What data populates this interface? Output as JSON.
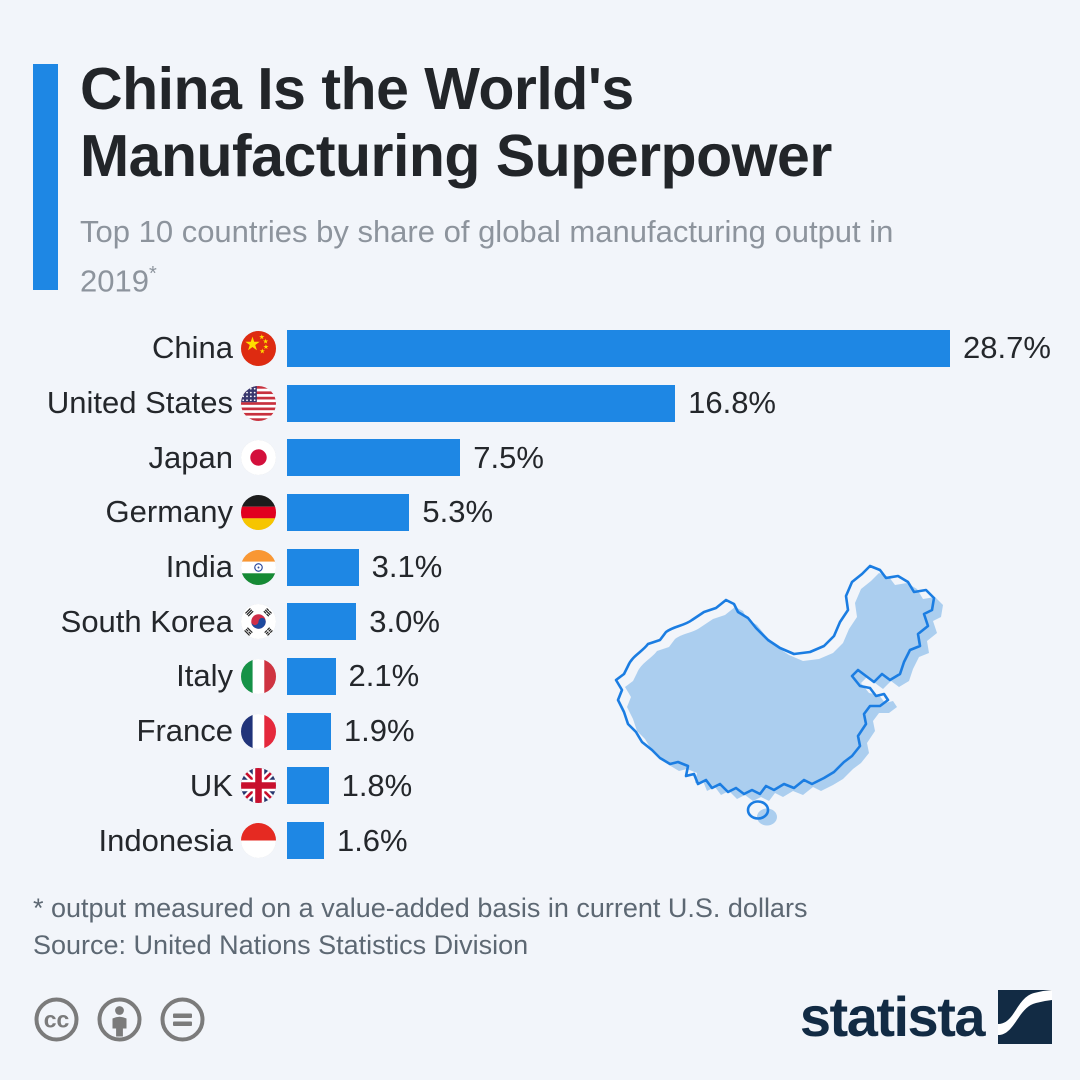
{
  "header": {
    "title_line1": "China Is the World's",
    "title_line2": "Manufacturing Superpower",
    "subtitle": "Top 10 countries by share of global manufacturing output in 2019",
    "subtitle_note_marker": "*"
  },
  "chart_data": {
    "type": "bar",
    "orientation": "horizontal",
    "title": "Top 10 countries by share of global manufacturing output in 2019",
    "unit": "%",
    "xlim": [
      0,
      28.7
    ],
    "grid": false,
    "bar_color": "#1e87e4",
    "categories": [
      "China",
      "United States",
      "Japan",
      "Germany",
      "India",
      "South Korea",
      "Italy",
      "France",
      "UK",
      "Indonesia"
    ],
    "values": [
      28.7,
      16.8,
      7.5,
      5.3,
      3.1,
      3.0,
      2.1,
      1.9,
      1.8,
      1.6
    ],
    "value_labels": [
      "28.7%",
      "16.8%",
      "7.5%",
      "5.3%",
      "3.1%",
      "3.0%",
      "2.1%",
      "1.9%",
      "1.8%",
      "1.6%"
    ],
    "flag_icons": [
      "china-flag-icon",
      "united-states-flag-icon",
      "japan-flag-icon",
      "germany-flag-icon",
      "india-flag-icon",
      "south-korea-flag-icon",
      "italy-flag-icon",
      "france-flag-icon",
      "uk-flag-icon",
      "indonesia-flag-icon"
    ]
  },
  "map": {
    "icon": "china-map-silhouette",
    "fill": "#abceef",
    "stroke": "#1b7de2"
  },
  "footer": {
    "footnote": "* output measured on a value-added basis in current U.S. dollars",
    "source": "Source: United Nations Statistics Division"
  },
  "branding": {
    "logo_text": "statista",
    "license_icons": [
      "cc-icon",
      "attribution-icon",
      "no-derivatives-icon"
    ]
  },
  "colors": {
    "background": "#f2f5fa",
    "accent_blue": "#1e87e4",
    "title_text": "#222529",
    "subtitle_text": "#8d949d",
    "footnote_text": "#5d6873",
    "license_gray": "#7b7b7b",
    "logo_navy": "#122b44"
  }
}
